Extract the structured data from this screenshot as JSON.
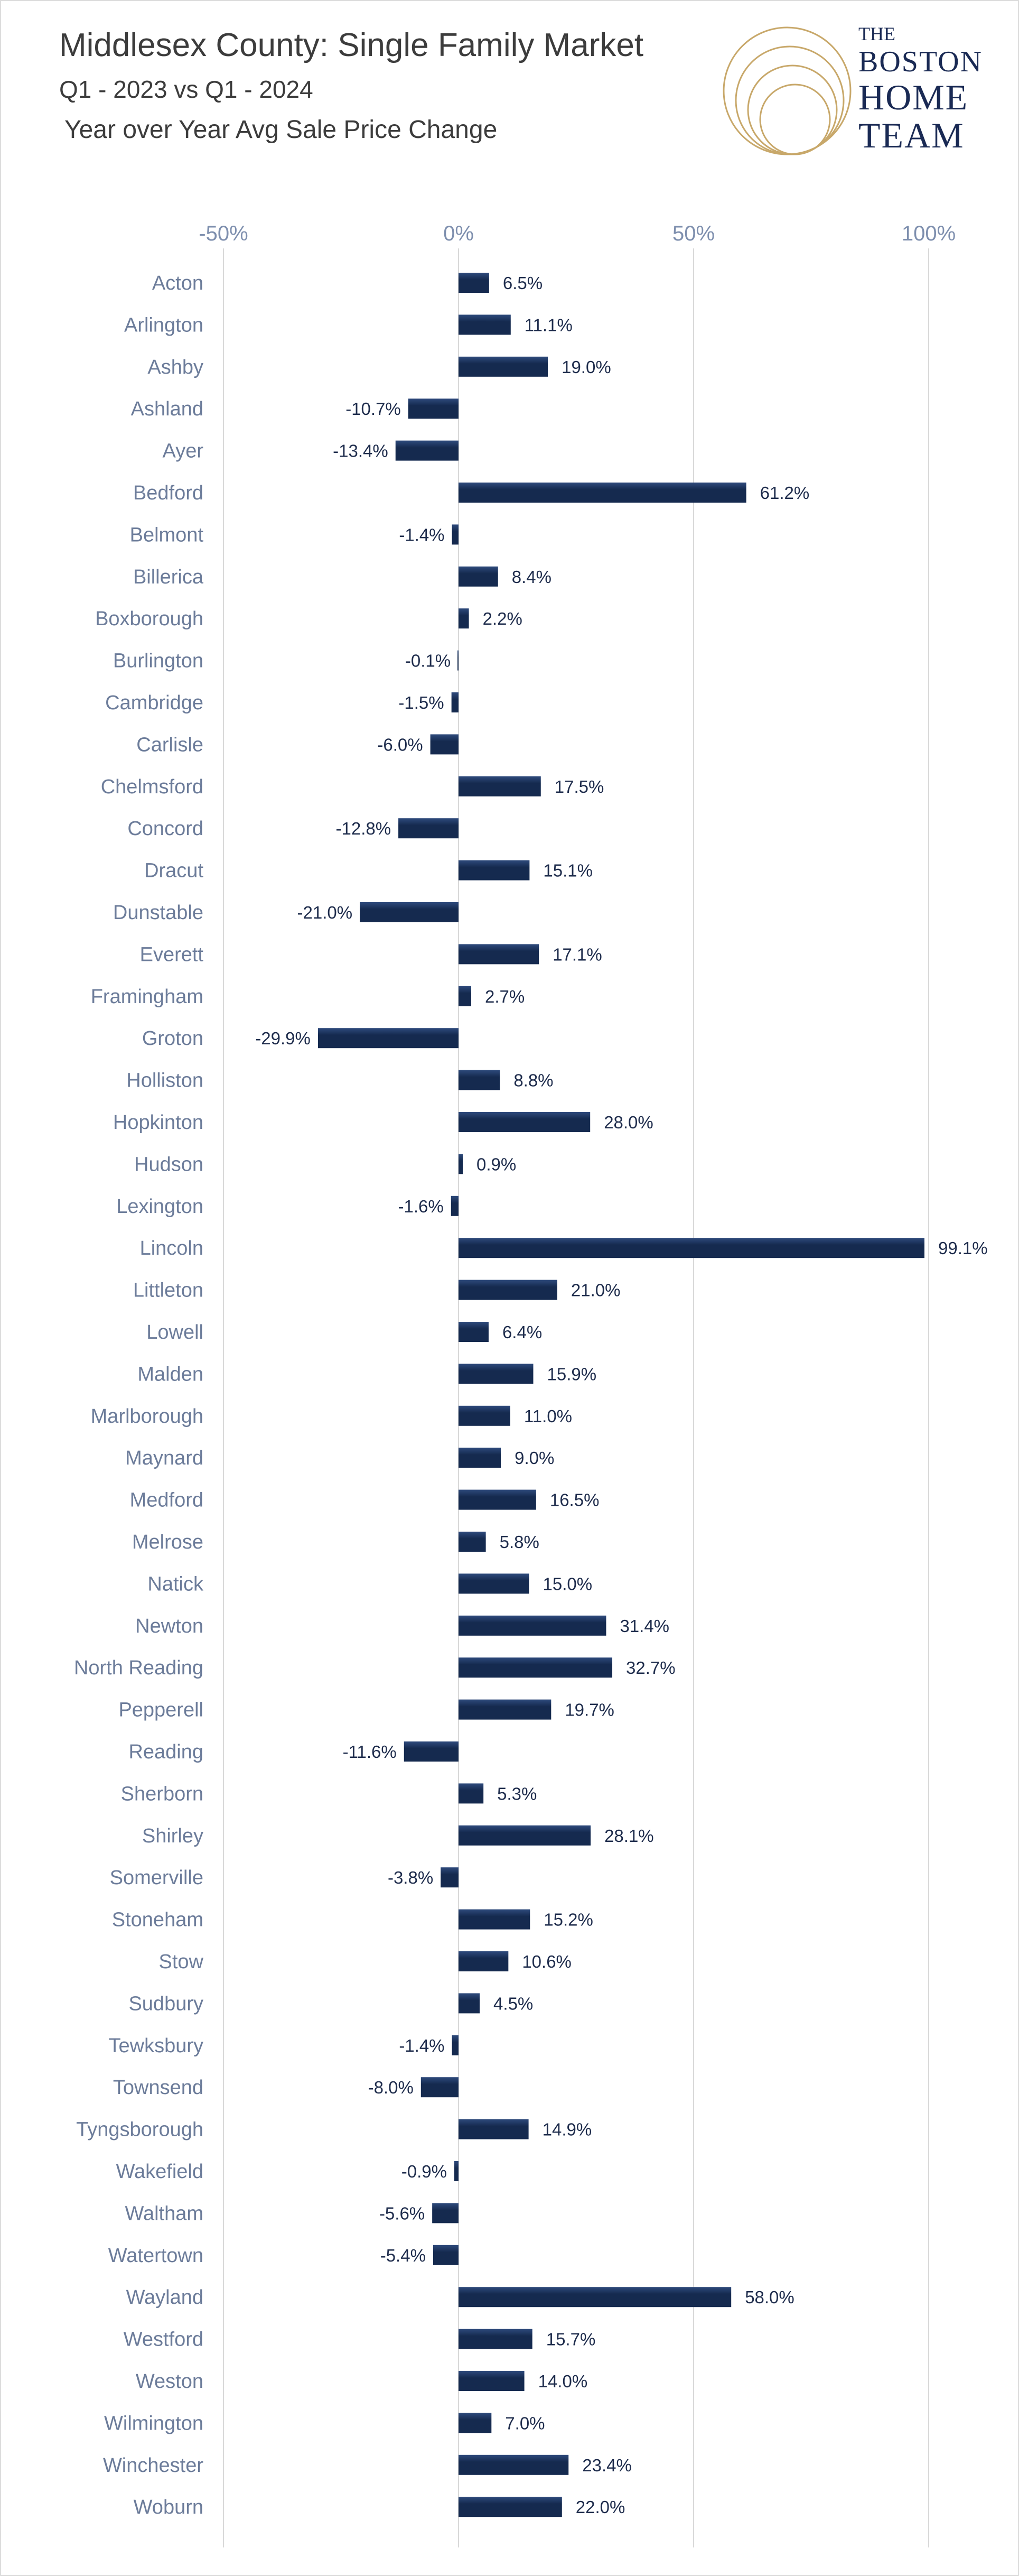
{
  "header": {
    "title": "Middlesex County:  Single Family Market",
    "subtitle": "Q1 - 2023 vs Q1 - 2024",
    "metric": "Year over Year Avg Sale Price Change"
  },
  "logo": {
    "line1": "THE",
    "line2": "BOSTON",
    "line3": "HOME",
    "line4": "TEAM",
    "colors": {
      "rings": "#c8a86a",
      "text": "#1a2a54"
    }
  },
  "colors": {
    "bar": "#152a4f",
    "bar_highlight": "#2e4a7c",
    "grid": "#d9d9d9",
    "tick_label": "#7e8fae",
    "category_label": "#6c7c9a",
    "value_label": "#1e2c4c"
  },
  "chart_data": {
    "type": "bar",
    "orientation": "horizontal",
    "title": "Middlesex County:  Single Family Market",
    "subtitle": "Q1 - 2023 vs Q1 - 2024 — Year over Year Avg Sale Price Change",
    "xlabel": "",
    "ylabel": "",
    "xlim": [
      -50,
      100
    ],
    "xticks": [
      -50,
      0,
      50,
      100
    ],
    "xtick_labels": [
      "-50%",
      "0%",
      "50%",
      "100%"
    ],
    "grid": true,
    "value_unit": "%",
    "categories": [
      "Acton",
      "Arlington",
      "Ashby",
      "Ashland",
      "Ayer",
      "Bedford",
      "Belmont",
      "Billerica",
      "Boxborough",
      "Burlington",
      "Cambridge",
      "Carlisle",
      "Chelmsford",
      "Concord",
      "Dracut",
      "Dunstable",
      "Everett",
      "Framingham",
      "Groton",
      "Holliston",
      "Hopkinton",
      "Hudson",
      "Lexington",
      "Lincoln",
      "Littleton",
      "Lowell",
      "Malden",
      "Marlborough",
      "Maynard",
      "Medford",
      "Melrose",
      "Natick",
      "Newton",
      "North Reading",
      "Pepperell",
      "Reading",
      "Sherborn",
      "Shirley",
      "Somerville",
      "Stoneham",
      "Stow",
      "Sudbury",
      "Tewksbury",
      "Townsend",
      "Tyngsborough",
      "Wakefield",
      "Waltham",
      "Watertown",
      "Wayland",
      "Westford",
      "Weston",
      "Wilmington",
      "Winchester",
      "Woburn"
    ],
    "values": [
      6.5,
      11.1,
      19.0,
      -10.7,
      -13.4,
      61.2,
      -1.4,
      8.4,
      2.2,
      -0.1,
      -1.5,
      -6.0,
      17.5,
      -12.8,
      15.1,
      -21.0,
      17.1,
      2.7,
      -29.9,
      8.8,
      28.0,
      0.9,
      -1.6,
      99.1,
      21.0,
      6.4,
      15.9,
      11.0,
      9.0,
      16.5,
      5.8,
      15.0,
      31.4,
      32.7,
      19.7,
      -11.6,
      5.3,
      28.1,
      -3.8,
      15.2,
      10.6,
      4.5,
      -1.4,
      -8.0,
      14.9,
      -0.9,
      -5.6,
      -5.4,
      58.0,
      15.7,
      14.0,
      7.0,
      23.4,
      22.0
    ],
    "data_labels": [
      "6.5%",
      "11.1%",
      "19.0%",
      "-10.7%",
      "-13.4%",
      "61.2%",
      "-1.4%",
      "8.4%",
      "2.2%",
      "-0.1%",
      "-1.5%",
      "-6.0%",
      "17.5%",
      "-12.8%",
      "15.1%",
      "-21.0%",
      "17.1%",
      "2.7%",
      "-29.9%",
      "8.8%",
      "28.0%",
      "0.9%",
      "-1.6%",
      "99.1%",
      "21.0%",
      "6.4%",
      "15.9%",
      "11.0%",
      "9.0%",
      "16.5%",
      "5.8%",
      "15.0%",
      "31.4%",
      "32.7%",
      "19.7%",
      "-11.6%",
      "5.3%",
      "28.1%",
      "-3.8%",
      "15.2%",
      "10.6%",
      "4.5%",
      "-1.4%",
      "-8.0%",
      "14.9%",
      "-0.9%",
      "-5.6%",
      "-5.4%",
      "58.0%",
      "15.7%",
      "14.0%",
      "7.0%",
      "23.4%",
      "22.0%"
    ]
  }
}
